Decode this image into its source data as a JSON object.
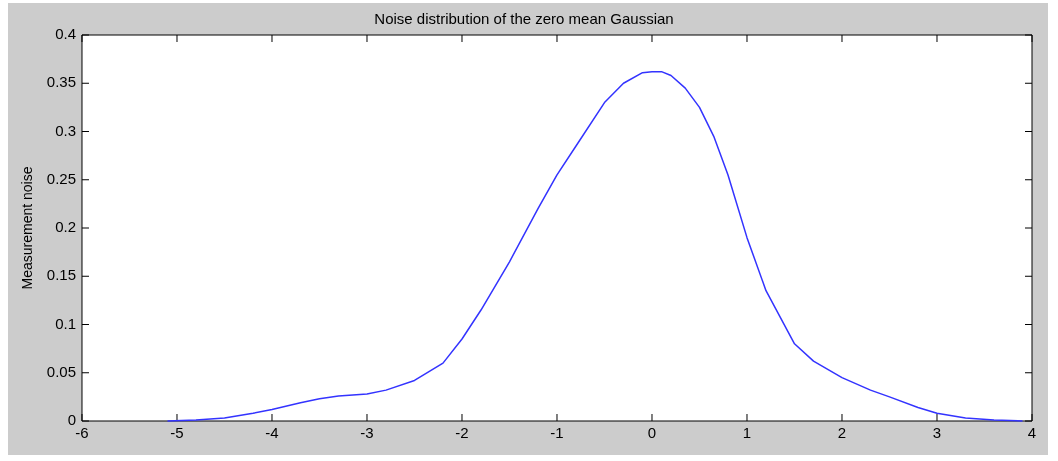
{
  "chart_data": {
    "type": "line",
    "title": "Noise distribution of the zero mean Gaussian",
    "ylabel": "Measurement noise",
    "x": [
      -5.1,
      -4.8,
      -4.5,
      -4.2,
      -4,
      -3.7,
      -3.5,
      -3.3,
      -3,
      -2.8,
      -2.5,
      -2.2,
      -2,
      -1.8,
      -1.5,
      -1.2,
      -1,
      -0.8,
      -0.5,
      -0.3,
      -0.1,
      0,
      0.1,
      0.2,
      0.35,
      0.5,
      0.65,
      0.8,
      1,
      1.2,
      1.5,
      1.7,
      2,
      2.3,
      2.5,
      2.8,
      3,
      3.3,
      3.6,
      3.9
    ],
    "series": [
      {
        "color": "#3333ff",
        "values": [
          0,
          0.001,
          0.003,
          0.008,
          0.012,
          0.019,
          0.023,
          0.026,
          0.028,
          0.032,
          0.042,
          0.06,
          0.085,
          0.115,
          0.165,
          0.22,
          0.255,
          0.285,
          0.33,
          0.35,
          0.361,
          0.362,
          0.362,
          0.358,
          0.345,
          0.325,
          0.295,
          0.255,
          0.19,
          0.135,
          0.08,
          0.062,
          0.045,
          0.032,
          0.025,
          0.014,
          0.008,
          0.003,
          0.001,
          0
        ]
      }
    ],
    "xlim": [
      -6,
      4
    ],
    "xticks": [
      -6,
      -5,
      -4,
      -3,
      -2,
      -1,
      0,
      1,
      2,
      3,
      4
    ],
    "ylim": [
      0,
      0.4
    ],
    "yticks": [
      0,
      0.05,
      0.1,
      0.15,
      0.2,
      0.25,
      0.3,
      0.35,
      0.4
    ],
    "grid": false,
    "legend": false,
    "marker": "none",
    "line_style": "solid"
  }
}
